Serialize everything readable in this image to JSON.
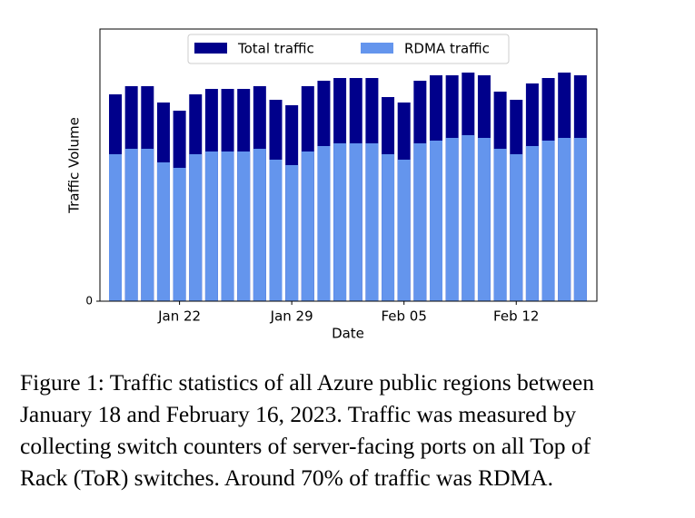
{
  "chart_data": {
    "type": "bar",
    "categories": [
      null,
      null,
      null,
      null,
      "Jan 22",
      null,
      null,
      null,
      null,
      null,
      null,
      "Jan 29",
      null,
      null,
      null,
      null,
      null,
      null,
      "Feb 05",
      null,
      null,
      null,
      null,
      null,
      null,
      "Feb 12",
      null,
      null,
      null,
      null
    ],
    "series": [
      {
        "name": "Total traffic",
        "color": "#00008b",
        "values": [
          76,
          79,
          79,
          73,
          70,
          76,
          78,
          78,
          78,
          79,
          74,
          72,
          79,
          81,
          82,
          82,
          82,
          75,
          73,
          81,
          83,
          83,
          84,
          83,
          77,
          74,
          80,
          82,
          84,
          83
        ]
      },
      {
        "name": "RDMA traffic",
        "color": "#6495ed",
        "values": [
          54,
          56,
          56,
          51,
          49,
          54,
          55,
          55,
          55,
          56,
          52,
          50,
          55,
          57,
          58,
          58,
          58,
          54,
          52,
          58,
          59,
          60,
          61,
          60,
          56,
          54,
          57,
          59,
          60,
          60
        ]
      }
    ],
    "overlap": true,
    "ylim": [
      0,
      100
    ],
    "yticks": [
      0
    ],
    "xlabel": "Date",
    "ylabel": "Traffic Volume",
    "legend": "upper center"
  },
  "caption": [
    "Figure 1: Traffic statistics of all Azure public regions between",
    "January 18 and February 16, 2023. Traffic was measured by",
    "collecting switch counters of server-facing ports on all Top of",
    "Rack (ToR) switches. Around 70% of traffic was RDMA."
  ]
}
